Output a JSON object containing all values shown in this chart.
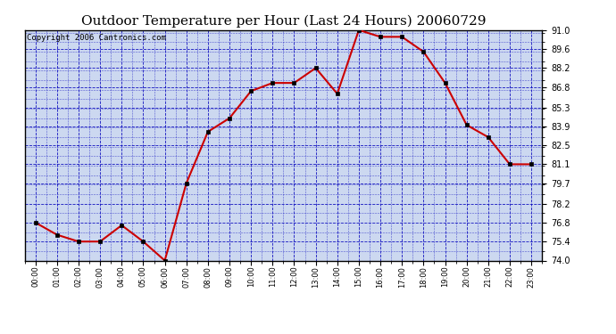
{
  "title": "Outdoor Temperature per Hour (Last 24 Hours) 20060729",
  "copyright_text": "Copyright 2006 Cantronics.com",
  "hours": [
    "00:00",
    "01:00",
    "02:00",
    "03:00",
    "04:00",
    "05:00",
    "06:00",
    "07:00",
    "08:00",
    "09:00",
    "10:00",
    "11:00",
    "12:00",
    "13:00",
    "14:00",
    "15:00",
    "16:00",
    "17:00",
    "18:00",
    "19:00",
    "20:00",
    "21:00",
    "22:00",
    "23:00"
  ],
  "temperatures": [
    76.8,
    75.9,
    75.4,
    75.4,
    76.6,
    75.4,
    74.0,
    79.7,
    83.5,
    84.5,
    86.5,
    87.1,
    87.1,
    88.2,
    86.3,
    91.0,
    90.5,
    90.5,
    89.4,
    87.1,
    84.0,
    83.1,
    81.1,
    81.1
  ],
  "ylim": [
    74.0,
    91.0
  ],
  "yticks": [
    74.0,
    75.4,
    76.8,
    78.2,
    79.7,
    81.1,
    82.5,
    83.9,
    85.3,
    86.8,
    88.2,
    89.6,
    91.0
  ],
  "line_color": "#cc0000",
  "marker_color": "#000000",
  "outer_bg_color": "#ffffff",
  "plot_bg_color": "#ccd8f0",
  "grid_color": "#0000bb",
  "title_fontsize": 11,
  "copyright_fontsize": 6.5
}
